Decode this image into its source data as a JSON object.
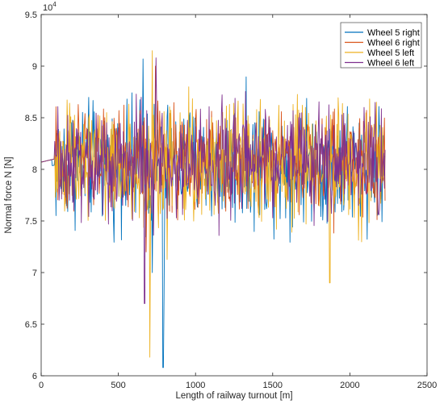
{
  "chart_data": {
    "type": "line",
    "title": "",
    "xlabel": "Length of railway turnout [m]",
    "ylabel": "Normal force N [N]",
    "y_exponent_label": "10^4",
    "xlim": [
      0,
      2500
    ],
    "ylim": [
      6.0,
      9.5
    ],
    "x_ticks": [
      "0",
      "500",
      "1000",
      "1500",
      "2000",
      "2500"
    ],
    "y_ticks": [
      "6",
      "6.5",
      "7",
      "7.5",
      "8",
      "8.5",
      "9",
      "9.5"
    ],
    "y_scale_note": "values in units of 10^4 N",
    "grid": false,
    "legend_position": "top-right",
    "x_range_data": [
      0,
      2230
    ],
    "baseline_value": 8.07,
    "series": [
      {
        "name": "Wheel 5 right",
        "color": "#0072BD",
        "center": 8.05,
        "amplitude": 0.42,
        "peaks": [
          {
            "x": 660,
            "y": 9.07
          },
          {
            "x": 790,
            "y": 6.08
          },
          {
            "x": 795,
            "y": 6.77
          },
          {
            "x": 720,
            "y": 7.0
          }
        ]
      },
      {
        "name": "Wheel 6 right",
        "color": "#D95319",
        "center": 8.08,
        "amplitude": 0.38,
        "peaks": [
          {
            "x": 740,
            "y": 9.0
          },
          {
            "x": 680,
            "y": 7.2
          }
        ]
      },
      {
        "name": "Wheel 5 left",
        "color": "#EDB120",
        "center": 8.05,
        "amplitude": 0.45,
        "peaks": [
          {
            "x": 720,
            "y": 9.15
          },
          {
            "x": 705,
            "y": 6.18
          },
          {
            "x": 1870,
            "y": 6.9
          }
        ]
      },
      {
        "name": "Wheel 6 left",
        "color": "#7E2F8E",
        "center": 8.08,
        "amplitude": 0.4,
        "peaks": [
          {
            "x": 745,
            "y": 9.08
          },
          {
            "x": 670,
            "y": 6.7
          }
        ]
      }
    ]
  }
}
